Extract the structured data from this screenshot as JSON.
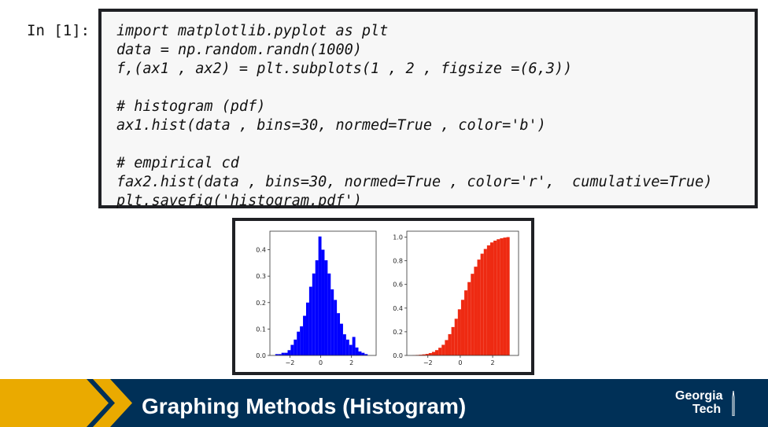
{
  "cell": {
    "prompt": "In [1]:",
    "code_lines": [
      "import matplotlib.pyplot as plt",
      "data = np.random.randn(1000)",
      "f,(ax1 , ax2) = plt.subplots(1 , 2 , figsize =(6,3))",
      "",
      "# histogram (pdf)",
      "ax1.hist(data , bins=30, normed=True , color='b')",
      "",
      "# empirical cd",
      "fax2.hist(data , bins=30, normed=True , color='r',  cumulative=True)",
      "plt.savefig('histogram.pdf')"
    ]
  },
  "chart_data": [
    {
      "type": "bar",
      "title": "",
      "color": "#0000ff",
      "x": [
        -2.85,
        -2.65,
        -2.45,
        -2.25,
        -2.05,
        -1.85,
        -1.65,
        -1.45,
        -1.25,
        -1.05,
        -0.85,
        -0.65,
        -0.45,
        -0.25,
        -0.05,
        0.15,
        0.35,
        0.55,
        0.75,
        0.95,
        1.15,
        1.35,
        1.55,
        1.75,
        1.95,
        2.15,
        2.35,
        2.55,
        2.75,
        2.95
      ],
      "values": [
        0.005,
        0.005,
        0.01,
        0.01,
        0.02,
        0.04,
        0.06,
        0.09,
        0.11,
        0.15,
        0.2,
        0.26,
        0.31,
        0.36,
        0.45,
        0.4,
        0.36,
        0.31,
        0.25,
        0.21,
        0.16,
        0.12,
        0.08,
        0.06,
        0.04,
        0.07,
        0.03,
        0.015,
        0.01,
        0.005
      ],
      "xlim": [
        -3.3,
        3.6
      ],
      "ylim": [
        0,
        0.47
      ],
      "xticks": [
        "-2",
        "0",
        "2"
      ],
      "xtick_values": [
        -2,
        0,
        2
      ],
      "yticks": [
        "0.0",
        "0.1",
        "0.2",
        "0.3",
        "0.4"
      ],
      "ytick_values": [
        0,
        0.1,
        0.2,
        0.3,
        0.4
      ]
    },
    {
      "type": "bar",
      "title": "",
      "color": "#ee2a12",
      "x": [
        -2.85,
        -2.65,
        -2.45,
        -2.25,
        -2.05,
        -1.85,
        -1.65,
        -1.45,
        -1.25,
        -1.05,
        -0.85,
        -0.65,
        -0.45,
        -0.25,
        -0.05,
        0.15,
        0.35,
        0.55,
        0.75,
        0.95,
        1.15,
        1.35,
        1.55,
        1.75,
        1.95,
        2.15,
        2.35,
        2.55,
        2.75,
        2.95
      ],
      "values": [
        0.002,
        0.004,
        0.006,
        0.009,
        0.013,
        0.02,
        0.03,
        0.045,
        0.065,
        0.09,
        0.13,
        0.18,
        0.24,
        0.31,
        0.39,
        0.47,
        0.55,
        0.62,
        0.69,
        0.75,
        0.81,
        0.86,
        0.9,
        0.93,
        0.955,
        0.97,
        0.982,
        0.99,
        0.996,
        1.0
      ],
      "xlim": [
        -3.3,
        3.6
      ],
      "ylim": [
        0,
        1.05
      ],
      "xticks": [
        "-2",
        "0",
        "2"
      ],
      "xtick_values": [
        -2,
        0,
        2
      ],
      "yticks": [
        "0.0",
        "0.2",
        "0.4",
        "0.6",
        "0.8",
        "1.0"
      ],
      "ytick_values": [
        0,
        0.2,
        0.4,
        0.6,
        0.8,
        1.0
      ]
    }
  ],
  "footer": {
    "title": "Graphing Methods (Histogram)",
    "logo_line1": "Georgia",
    "logo_line2": "Tech",
    "background": "#003057",
    "accent": "#eaaa00"
  }
}
